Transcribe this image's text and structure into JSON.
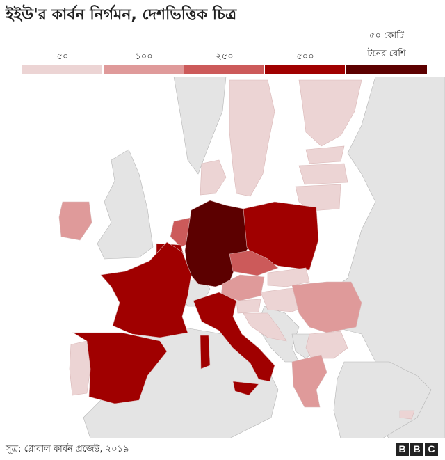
{
  "title": "ইইউ'র কার্বন নির্গমন, দেশভিত্তিক চিত্র",
  "legend": {
    "items": [
      {
        "label": "৫০",
        "color": "#ecd4d4"
      },
      {
        "label": "১০০",
        "color": "#df9a9a"
      },
      {
        "label": "২৫০",
        "color": "#cc5a5a"
      },
      {
        "label": "৫০০",
        "color": "#a00000"
      },
      {
        "label_line1": "৫০ কোটি",
        "label_line2": "টনের বেশি",
        "color": "#5c0000"
      }
    ]
  },
  "map": {
    "background_land_color": "#e4e4e4",
    "sea_color": "#ffffff",
    "border_color": "#b5b5b5",
    "countries": [
      {
        "name": "Germany",
        "class": "৫০ কোটি টনের বেশি"
      },
      {
        "name": "France",
        "class": "৫০০"
      },
      {
        "name": "Spain",
        "class": "৫০০"
      },
      {
        "name": "Italy",
        "class": "৫০০"
      },
      {
        "name": "Poland",
        "class": "৫০০"
      },
      {
        "name": "Netherlands",
        "class": "২৫০"
      },
      {
        "name": "Belgium",
        "class": "৫০০"
      },
      {
        "name": "Czechia",
        "class": "২৫০"
      },
      {
        "name": "Romania",
        "class": "১০০"
      },
      {
        "name": "Austria",
        "class": "১০০"
      },
      {
        "name": "Greece",
        "class": "১০০"
      },
      {
        "name": "Ireland",
        "class": "১০০"
      },
      {
        "name": "Sweden",
        "class": "৫০"
      },
      {
        "name": "Finland",
        "class": "৫০"
      },
      {
        "name": "Denmark",
        "class": "৫০"
      },
      {
        "name": "Portugal",
        "class": "৫০"
      },
      {
        "name": "Hungary",
        "class": "৫০"
      },
      {
        "name": "Slovakia",
        "class": "৫০"
      },
      {
        "name": "Bulgaria",
        "class": "৫০"
      },
      {
        "name": "Croatia",
        "class": "৫০"
      },
      {
        "name": "Slovenia",
        "class": "৫০"
      },
      {
        "name": "Lithuania",
        "class": "৫০"
      },
      {
        "name": "Latvia",
        "class": "৫০"
      },
      {
        "name": "Estonia",
        "class": "৫০"
      },
      {
        "name": "Luxembourg",
        "class": "৫০"
      },
      {
        "name": "Cyprus",
        "class": "৫০"
      }
    ]
  },
  "source": "সূত্র: গ্লোবাল কার্বন প্রজেক্ট, ২০১৯",
  "logo": {
    "letters": [
      "B",
      "B",
      "C"
    ]
  }
}
